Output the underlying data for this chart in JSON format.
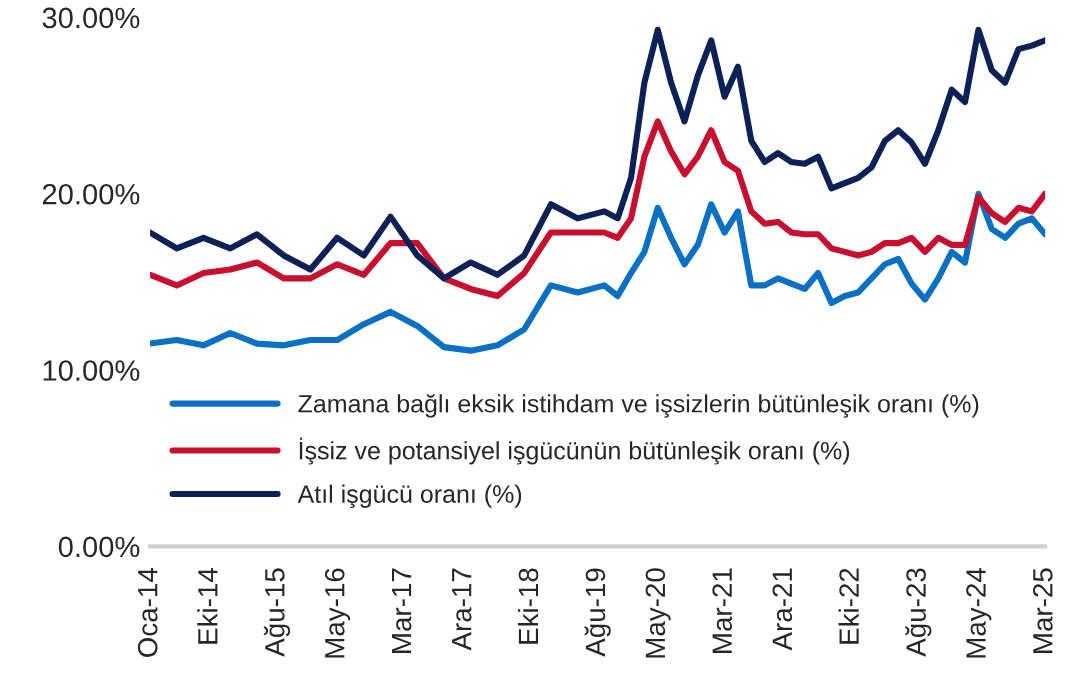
{
  "chart_data": {
    "type": "line",
    "x": [
      "2014-01",
      "2014-03",
      "2014-05",
      "2014-07",
      "2014-09",
      "2014-11",
      "2015-01",
      "2015-03",
      "2015-05",
      "2015-07",
      "2015-09",
      "2015-11",
      "2016-01",
      "2016-03",
      "2016-05",
      "2016-07",
      "2016-09",
      "2016-11",
      "2017-01",
      "2017-03",
      "2017-05",
      "2017-07",
      "2017-09",
      "2017-11",
      "2018-01",
      "2018-03",
      "2018-05",
      "2018-07",
      "2018-09",
      "2018-11",
      "2019-01",
      "2019-03",
      "2019-05",
      "2019-07",
      "2019-09",
      "2019-11",
      "2020-01",
      "2020-03",
      "2020-05",
      "2020-07",
      "2020-09",
      "2020-11",
      "2021-01",
      "2021-03",
      "2021-05",
      "2021-07",
      "2021-09",
      "2021-11",
      "2022-01",
      "2022-03",
      "2022-05",
      "2022-07",
      "2022-09",
      "2022-11",
      "2023-01",
      "2023-03",
      "2023-05",
      "2023-07",
      "2023-09",
      "2023-11",
      "2024-01",
      "2024-03",
      "2024-05",
      "2024-07",
      "2024-09",
      "2024-11",
      "2025-01",
      "2025-03"
    ],
    "series": [
      {
        "name": "Zamana bağlı eksik istihdam ve işsizlerin bütünleşik oranı (%)",
        "color": "#0a70c6",
        "values": [
          11.5,
          null,
          11.7,
          null,
          11.4,
          null,
          12.1,
          null,
          11.5,
          null,
          11.4,
          null,
          11.7,
          null,
          11.7,
          null,
          12.6,
          null,
          13.3,
          null,
          12.5,
          null,
          11.3,
          null,
          11.1,
          null,
          11.4,
          null,
          12.3,
          null,
          14.8,
          null,
          14.4,
          null,
          14.8,
          14.2,
          15.5,
          16.7,
          19.2,
          17.5,
          16.0,
          17.1,
          19.4,
          17.8,
          19.0,
          14.8,
          14.8,
          15.2,
          14.9,
          14.6,
          15.5,
          13.8,
          14.2,
          14.4,
          15.2,
          16.0,
          16.3,
          14.9,
          14.0,
          15.2,
          16.7,
          16.1,
          20.0,
          18.0,
          17.5,
          18.3,
          18.6,
          17.7
        ]
      },
      {
        "name": "İşsiz ve potansiyel işgücünün bütünleşik oranı (%)",
        "color": "#c8102e",
        "values": [
          15.4,
          null,
          14.8,
          null,
          15.5,
          null,
          15.7,
          null,
          16.1,
          null,
          15.2,
          null,
          15.2,
          null,
          16.0,
          null,
          15.4,
          null,
          17.2,
          null,
          17.2,
          null,
          15.2,
          null,
          14.6,
          null,
          14.2,
          null,
          15.5,
          null,
          17.8,
          null,
          17.8,
          null,
          17.8,
          17.5,
          18.6,
          22.1,
          24.1,
          22.4,
          21.1,
          22.1,
          23.6,
          21.8,
          21.3,
          19.0,
          18.3,
          18.4,
          17.8,
          17.7,
          17.7,
          16.9,
          16.7,
          16.5,
          16.7,
          17.2,
          17.2,
          17.5,
          16.7,
          17.5,
          17.1,
          17.1,
          19.8,
          18.9,
          18.4,
          19.2,
          19.0,
          20.0
        ]
      },
      {
        "name": "Atıl işgücü oranı (%)",
        "color": "#0d2159",
        "values": [
          17.8,
          null,
          16.9,
          null,
          17.5,
          null,
          16.9,
          null,
          17.7,
          null,
          16.5,
          null,
          15.7,
          null,
          17.5,
          null,
          16.5,
          null,
          18.7,
          null,
          16.5,
          null,
          15.2,
          null,
          16.1,
          null,
          15.4,
          null,
          16.5,
          null,
          19.4,
          null,
          18.6,
          null,
          19.0,
          18.6,
          20.9,
          26.3,
          29.3,
          26.3,
          24.1,
          26.7,
          28.7,
          25.5,
          27.2,
          23.0,
          21.8,
          22.3,
          21.8,
          21.7,
          22.1,
          20.3,
          20.6,
          20.9,
          21.5,
          23.0,
          23.6,
          22.9,
          21.7,
          23.6,
          25.9,
          25.2,
          29.3,
          27.0,
          26.3,
          28.2,
          28.4,
          28.7
        ]
      }
    ],
    "xlim": [
      "2014-01",
      "2025-03"
    ],
    "xticks": [
      {
        "value": "2014-01",
        "label": "Oca-14"
      },
      {
        "value": "2014-10",
        "label": "Eki-14"
      },
      {
        "value": "2015-08",
        "label": "Ağu-15"
      },
      {
        "value": "2016-05",
        "label": "May-16"
      },
      {
        "value": "2017-03",
        "label": "Mar-17"
      },
      {
        "value": "2017-12",
        "label": "Ara-17"
      },
      {
        "value": "2018-10",
        "label": "Eki-18"
      },
      {
        "value": "2019-08",
        "label": "Ağu-19"
      },
      {
        "value": "2020-05",
        "label": "May-20"
      },
      {
        "value": "2021-03",
        "label": "Mar-21"
      },
      {
        "value": "2021-12",
        "label": "Ara-21"
      },
      {
        "value": "2022-10",
        "label": "Eki-22"
      },
      {
        "value": "2023-08",
        "label": "Ağu-23"
      },
      {
        "value": "2024-05",
        "label": "May-24"
      },
      {
        "value": "2025-03",
        "label": "Mar-25"
      }
    ],
    "ylim": [
      0,
      30
    ],
    "yticks": [
      {
        "value": 0,
        "label": "0.00%"
      },
      {
        "value": 10,
        "label": "10.00%"
      },
      {
        "value": 20,
        "label": "20.00%"
      },
      {
        "value": 30,
        "label": "30.00%"
      }
    ],
    "grid": false,
    "legend": "bottom left",
    "marker": "none",
    "line_style": "solid"
  }
}
